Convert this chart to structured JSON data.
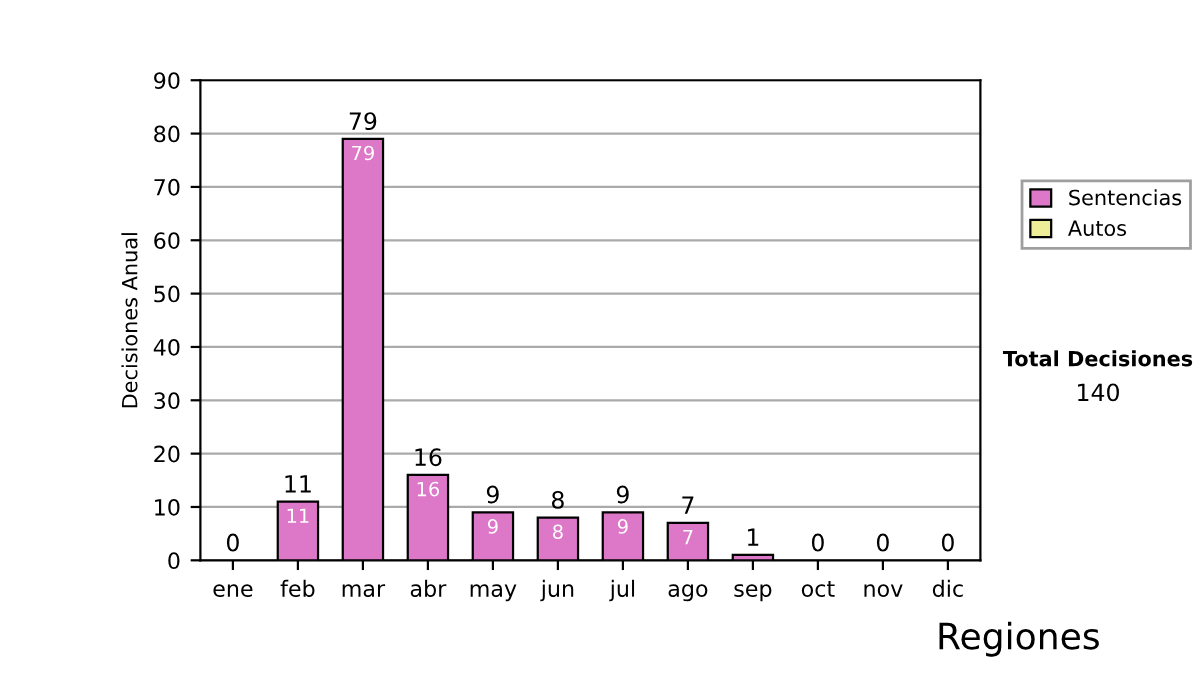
{
  "chart_data": {
    "type": "bar",
    "ylabel": "Decisiones Anual",
    "stacked": true,
    "categories": [
      "ene",
      "feb",
      "mar",
      "abr",
      "may",
      "jun",
      "jul",
      "ago",
      "sep",
      "oct",
      "nov",
      "dic"
    ],
    "series": [
      {
        "name": "Sentencias",
        "color": "#dd77c8",
        "values": [
          0,
          11,
          79,
          16,
          9,
          8,
          9,
          7,
          1,
          0,
          0,
          0
        ],
        "value_labels": [
          null,
          "11",
          "79",
          "16",
          "9",
          "8",
          "9",
          "7",
          null,
          null,
          null,
          null
        ]
      },
      {
        "name": "Autos",
        "color": "#eeee99",
        "values": [
          0,
          0,
          0,
          0,
          0,
          0,
          0,
          0,
          0,
          0,
          0,
          0
        ]
      }
    ],
    "totals": [
      "0",
      "11",
      "79",
      "16",
      "9",
      "8",
      "9",
      "7",
      "1",
      "0",
      "0",
      "0"
    ],
    "ylim": [
      0,
      90
    ],
    "yticks": [
      0,
      10,
      20,
      30,
      40,
      50,
      60,
      70,
      80,
      90
    ],
    "grid": "y",
    "legend": "right",
    "annotations": [
      "Total Decisiones",
      "140",
      "Regiones"
    ]
  }
}
